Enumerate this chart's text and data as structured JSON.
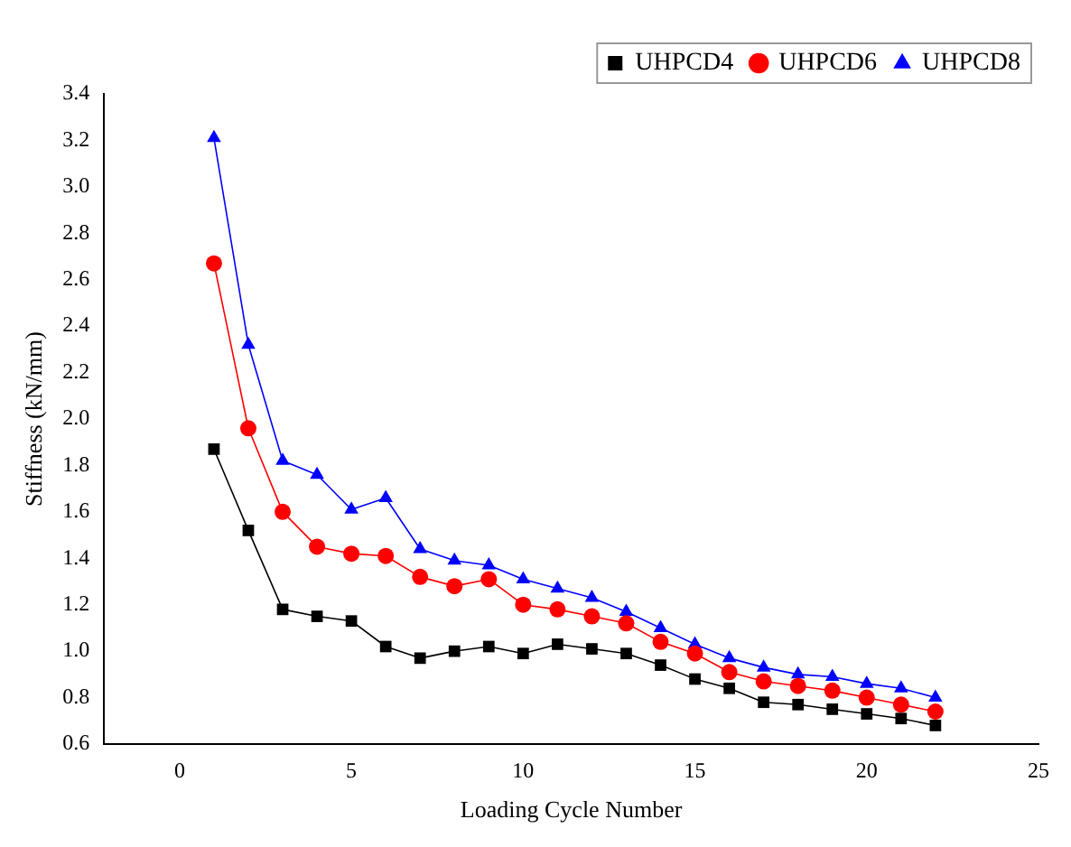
{
  "chart_data": {
    "type": "line",
    "xlabel": "Loading Cycle Number",
    "ylabel": "Stiffness (kN/mm)",
    "x": [
      1,
      2,
      3,
      4,
      5,
      6,
      7,
      8,
      9,
      10,
      11,
      12,
      13,
      14,
      15,
      16,
      17,
      18,
      19,
      20,
      21,
      22
    ],
    "series": [
      {
        "name": "UHPCD4",
        "color": "#000000",
        "marker": "square",
        "values": [
          1.87,
          1.52,
          1.18,
          1.15,
          1.13,
          1.02,
          0.97,
          1.0,
          1.02,
          0.99,
          1.03,
          1.01,
          0.99,
          0.94,
          0.88,
          0.84,
          0.78,
          0.77,
          0.75,
          0.73,
          0.71,
          0.68
        ]
      },
      {
        "name": "UHPCD6",
        "color": "#ff0000",
        "marker": "circle",
        "values": [
          2.67,
          1.96,
          1.6,
          1.45,
          1.42,
          1.41,
          1.32,
          1.28,
          1.31,
          1.2,
          1.18,
          1.15,
          1.12,
          1.04,
          0.99,
          0.91,
          0.87,
          0.85,
          0.83,
          0.8,
          0.77,
          0.74
        ]
      },
      {
        "name": "UHPCD8",
        "color": "#0000ff",
        "marker": "triangle",
        "values": [
          3.21,
          2.32,
          1.82,
          1.76,
          1.61,
          1.66,
          1.44,
          1.39,
          1.37,
          1.31,
          1.27,
          1.23,
          1.17,
          1.1,
          1.03,
          0.97,
          0.93,
          0.9,
          0.89,
          0.86,
          0.84,
          0.8
        ]
      }
    ],
    "xlim": [
      -2.2,
      25
    ],
    "xticks": [
      0,
      5,
      10,
      15,
      20,
      25
    ],
    "ylim": [
      0.6,
      3.4
    ],
    "yticks": [
      0.6,
      0.8,
      {
        "value": 1,
        "label": "1.0"
      },
      1.2,
      1.4,
      1.6,
      1.8,
      {
        "value": 2,
        "label": "2.0"
      },
      2.2,
      2.4,
      2.6,
      2.8,
      {
        "value": 3,
        "label": "3.0"
      },
      3.2,
      3.4
    ],
    "grid": false,
    "legend": "top right"
  }
}
